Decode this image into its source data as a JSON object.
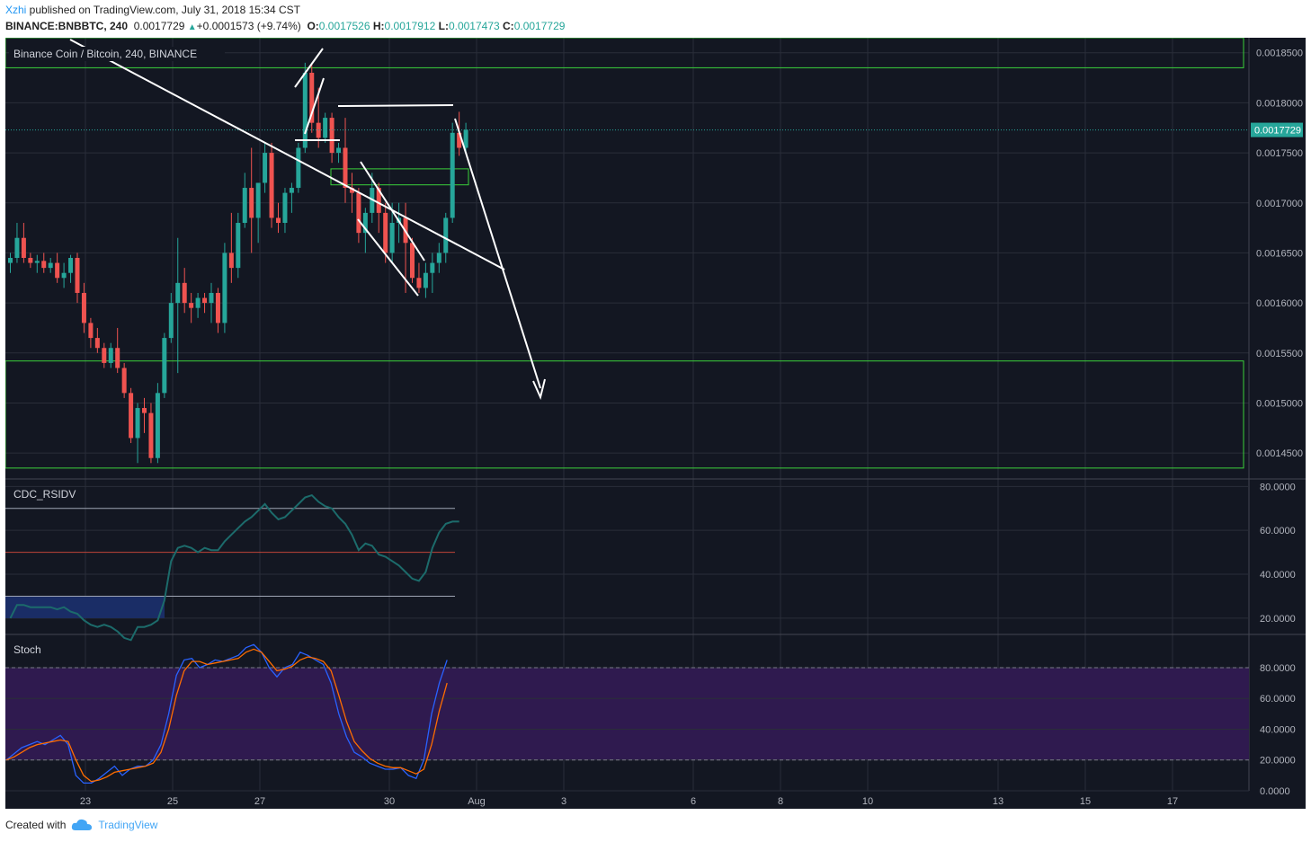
{
  "header": {
    "author": "Xzhi",
    "published": " published on TradingView.com, July 31, 2018 15:34 CST",
    "symbol": "BINANCE:BNBBTC, 240",
    "price": "0.0017729",
    "change": "+0.0001573 (+9.74%)",
    "open_label": "O:",
    "open": "0.0017526",
    "high_label": "H:",
    "high": "0.0017912",
    "low_label": "L:",
    "low": "0.0017473",
    "close_label": "C:",
    "close": "0.0017729"
  },
  "footer": {
    "created": "Created with",
    "brand": "TradingView"
  },
  "colors": {
    "background": "#131722",
    "grid": "#2a2e39",
    "up": "#26a69a",
    "down": "#ef5350",
    "zone": "#3bd13b",
    "drawing": "#ffffff",
    "rsi": "#1c6b6b",
    "stoch_k": "#2962ff",
    "stoch_d": "#ff6d00",
    "stoch_band": "#2f1a4f",
    "price_tag": "#26a69a"
  },
  "chart_data": [
    {
      "type": "candlestick",
      "title": "Binance Coin / Bitcoin, 240, BINANCE",
      "x_ticks": [
        "23",
        "25",
        "27",
        "30",
        "Aug",
        "3",
        "6",
        "8",
        "10",
        "13",
        "15",
        "17"
      ],
      "y_ticks": [
        "0.0018500",
        "0.0018000",
        "0.0017500",
        "0.0017000",
        "0.0016500",
        "0.0016000",
        "0.0015500",
        "0.0015000",
        "0.0014500"
      ],
      "ylim": [
        0.001425,
        0.001865
      ],
      "last_price": "0.0017729",
      "ohlc": [
        [
          0.00164,
          0.00165,
          0.00163,
          0.001645
        ],
        [
          0.001645,
          0.00168,
          0.00164,
          0.001665
        ],
        [
          0.001665,
          0.00168,
          0.00164,
          0.001645
        ],
        [
          0.001645,
          0.00165,
          0.001635,
          0.00164
        ],
        [
          0.00164,
          0.001648,
          0.00163,
          0.001642
        ],
        [
          0.001642,
          0.00165,
          0.00163,
          0.001635
        ],
        [
          0.001635,
          0.001645,
          0.00163,
          0.00164
        ],
        [
          0.00164,
          0.00165,
          0.00162,
          0.001625
        ],
        [
          0.001625,
          0.00164,
          0.001615,
          0.00163
        ],
        [
          0.00163,
          0.001648,
          0.00162,
          0.001645
        ],
        [
          0.001645,
          0.00165,
          0.0016,
          0.00161
        ],
        [
          0.00161,
          0.00162,
          0.00157,
          0.00158
        ],
        [
          0.00158,
          0.001585,
          0.001555,
          0.001565
        ],
        [
          0.001565,
          0.001575,
          0.00155,
          0.001555
        ],
        [
          0.001555,
          0.00156,
          0.001535,
          0.00154
        ],
        [
          0.00154,
          0.00156,
          0.001535,
          0.001555
        ],
        [
          0.001555,
          0.001575,
          0.00153,
          0.001535
        ],
        [
          0.001535,
          0.00154,
          0.001505,
          0.00151
        ],
        [
          0.00151,
          0.001515,
          0.00146,
          0.001465
        ],
        [
          0.001465,
          0.0015,
          0.00144,
          0.001495
        ],
        [
          0.001495,
          0.001505,
          0.00147,
          0.00149
        ],
        [
          0.00149,
          0.0015,
          0.00144,
          0.001445
        ],
        [
          0.001445,
          0.00152,
          0.00144,
          0.00151
        ],
        [
          0.00151,
          0.00157,
          0.001505,
          0.001565
        ],
        [
          0.001565,
          0.00161,
          0.00156,
          0.0016
        ],
        [
          0.0016,
          0.001665,
          0.00153,
          0.00162
        ],
        [
          0.00162,
          0.001635,
          0.00159,
          0.0016
        ],
        [
          0.0016,
          0.00161,
          0.00158,
          0.001595
        ],
        [
          0.001595,
          0.00161,
          0.001585,
          0.001605
        ],
        [
          0.001605,
          0.00161,
          0.00159,
          0.0016
        ],
        [
          0.0016,
          0.00162,
          0.00158,
          0.00161
        ],
        [
          0.00161,
          0.001615,
          0.00157,
          0.00158
        ],
        [
          0.00158,
          0.00166,
          0.00157,
          0.00165
        ],
        [
          0.00165,
          0.00169,
          0.00162,
          0.001635
        ],
        [
          0.001635,
          0.00169,
          0.001625,
          0.00168
        ],
        [
          0.00168,
          0.00173,
          0.001675,
          0.001715
        ],
        [
          0.001715,
          0.001755,
          0.00165,
          0.001685
        ],
        [
          0.001685,
          0.00172,
          0.00166,
          0.00172
        ],
        [
          0.00172,
          0.00176,
          0.00171,
          0.00175
        ],
        [
          0.00175,
          0.00176,
          0.001675,
          0.001685
        ],
        [
          0.001685,
          0.0017,
          0.00167,
          0.00168
        ],
        [
          0.00168,
          0.001715,
          0.00167,
          0.00171
        ],
        [
          0.00171,
          0.00172,
          0.00169,
          0.001715
        ],
        [
          0.001715,
          0.00176,
          0.00171,
          0.001755
        ],
        [
          0.001755,
          0.00184,
          0.00175,
          0.00183
        ],
        [
          0.00183,
          0.00184,
          0.00177,
          0.00178
        ],
        [
          0.00178,
          0.001815,
          0.001755,
          0.001765
        ],
        [
          0.001765,
          0.00179,
          0.00176,
          0.001785
        ],
        [
          0.001785,
          0.00179,
          0.00174,
          0.00175
        ],
        [
          0.00175,
          0.00176,
          0.00174,
          0.001755
        ],
        [
          0.001755,
          0.001785,
          0.0017,
          0.001715
        ],
        [
          0.001715,
          0.00173,
          0.00169,
          0.00171
        ],
        [
          0.00171,
          0.001715,
          0.00166,
          0.00167
        ],
        [
          0.00167,
          0.001695,
          0.00165,
          0.00169
        ],
        [
          0.00169,
          0.00173,
          0.00168,
          0.001715
        ],
        [
          0.001715,
          0.00172,
          0.00167,
          0.00169
        ],
        [
          0.00169,
          0.0017,
          0.00164,
          0.00165
        ],
        [
          0.00165,
          0.0017,
          0.00164,
          0.00168
        ],
        [
          0.00168,
          0.0017,
          0.00166,
          0.001685
        ],
        [
          0.001685,
          0.0017,
          0.00161,
          0.00166
        ],
        [
          0.00166,
          0.001665,
          0.00162,
          0.001625
        ],
        [
          0.001625,
          0.00164,
          0.00161,
          0.001615
        ],
        [
          0.001615,
          0.00164,
          0.001605,
          0.00163
        ],
        [
          0.00163,
          0.00165,
          0.00161,
          0.00164
        ],
        [
          0.00164,
          0.00166,
          0.00163,
          0.00165
        ],
        [
          0.00165,
          0.00169,
          0.00164,
          0.001685
        ],
        [
          0.001685,
          0.00178,
          0.00168,
          0.00177
        ],
        [
          0.00177,
          0.001791,
          0.001747,
          0.001755
        ],
        [
          0.001755,
          0.00178,
          0.00175,
          0.001773
        ]
      ],
      "zones": [
        {
          "from": 0.001835,
          "to": 0.001865
        },
        {
          "from": 0.001435,
          "to": 0.001542
        },
        {
          "from": 0.001718,
          "to": 0.001734
        }
      ]
    },
    {
      "type": "line",
      "title": "CDC_RSIDV",
      "y_ticks": [
        "80.0000",
        "60.0000",
        "40.0000",
        "20.0000"
      ],
      "ylim": [
        13,
        83
      ],
      "levels": [
        70,
        50,
        30
      ],
      "values": [
        20,
        26,
        26,
        25,
        25,
        25,
        25,
        24,
        25,
        23,
        22,
        19,
        17,
        16,
        17,
        16,
        14,
        11,
        10,
        16,
        16,
        17,
        19,
        28,
        46,
        52,
        53,
        52,
        50,
        52,
        51,
        51,
        55,
        58,
        61,
        64,
        66,
        69,
        72,
        68,
        65,
        66,
        69,
        72,
        75,
        76,
        73,
        71,
        70,
        66,
        63,
        58,
        51,
        54,
        53,
        49,
        48,
        46,
        44,
        41,
        38,
        37,
        41,
        52,
        59,
        63,
        64,
        64
      ]
    },
    {
      "type": "line",
      "title": "Stoch",
      "y_ticks": [
        "80.0000",
        "60.0000",
        "40.0000",
        "20.0000",
        "0.0000"
      ],
      "ylim": [
        0,
        101
      ],
      "band": [
        20,
        80
      ],
      "series": [
        {
          "name": "",
          "values": [
            20,
            24,
            28,
            30,
            32,
            30,
            33,
            36,
            30,
            10,
            5,
            5,
            8,
            12,
            16,
            10,
            14,
            16,
            16,
            20,
            30,
            50,
            75,
            85,
            86,
            80,
            82,
            85,
            84,
            86,
            88,
            93,
            95,
            90,
            80,
            74,
            80,
            82,
            90,
            88,
            85,
            82,
            70,
            50,
            35,
            25,
            22,
            18,
            16,
            14,
            14,
            15,
            10,
            8,
            20,
            50,
            70,
            85
          ]
        },
        {
          "name": "",
          "values": [
            20,
            22,
            25,
            28,
            30,
            31,
            32,
            33,
            32,
            20,
            10,
            6,
            7,
            9,
            12,
            13,
            14,
            15,
            16,
            18,
            25,
            40,
            62,
            78,
            84,
            84,
            82,
            83,
            84,
            85,
            86,
            90,
            92,
            90,
            84,
            78,
            79,
            81,
            85,
            87,
            86,
            84,
            78,
            62,
            45,
            32,
            26,
            21,
            18,
            16,
            15,
            15,
            13,
            11,
            14,
            30,
            52,
            70
          ]
        }
      ]
    }
  ]
}
